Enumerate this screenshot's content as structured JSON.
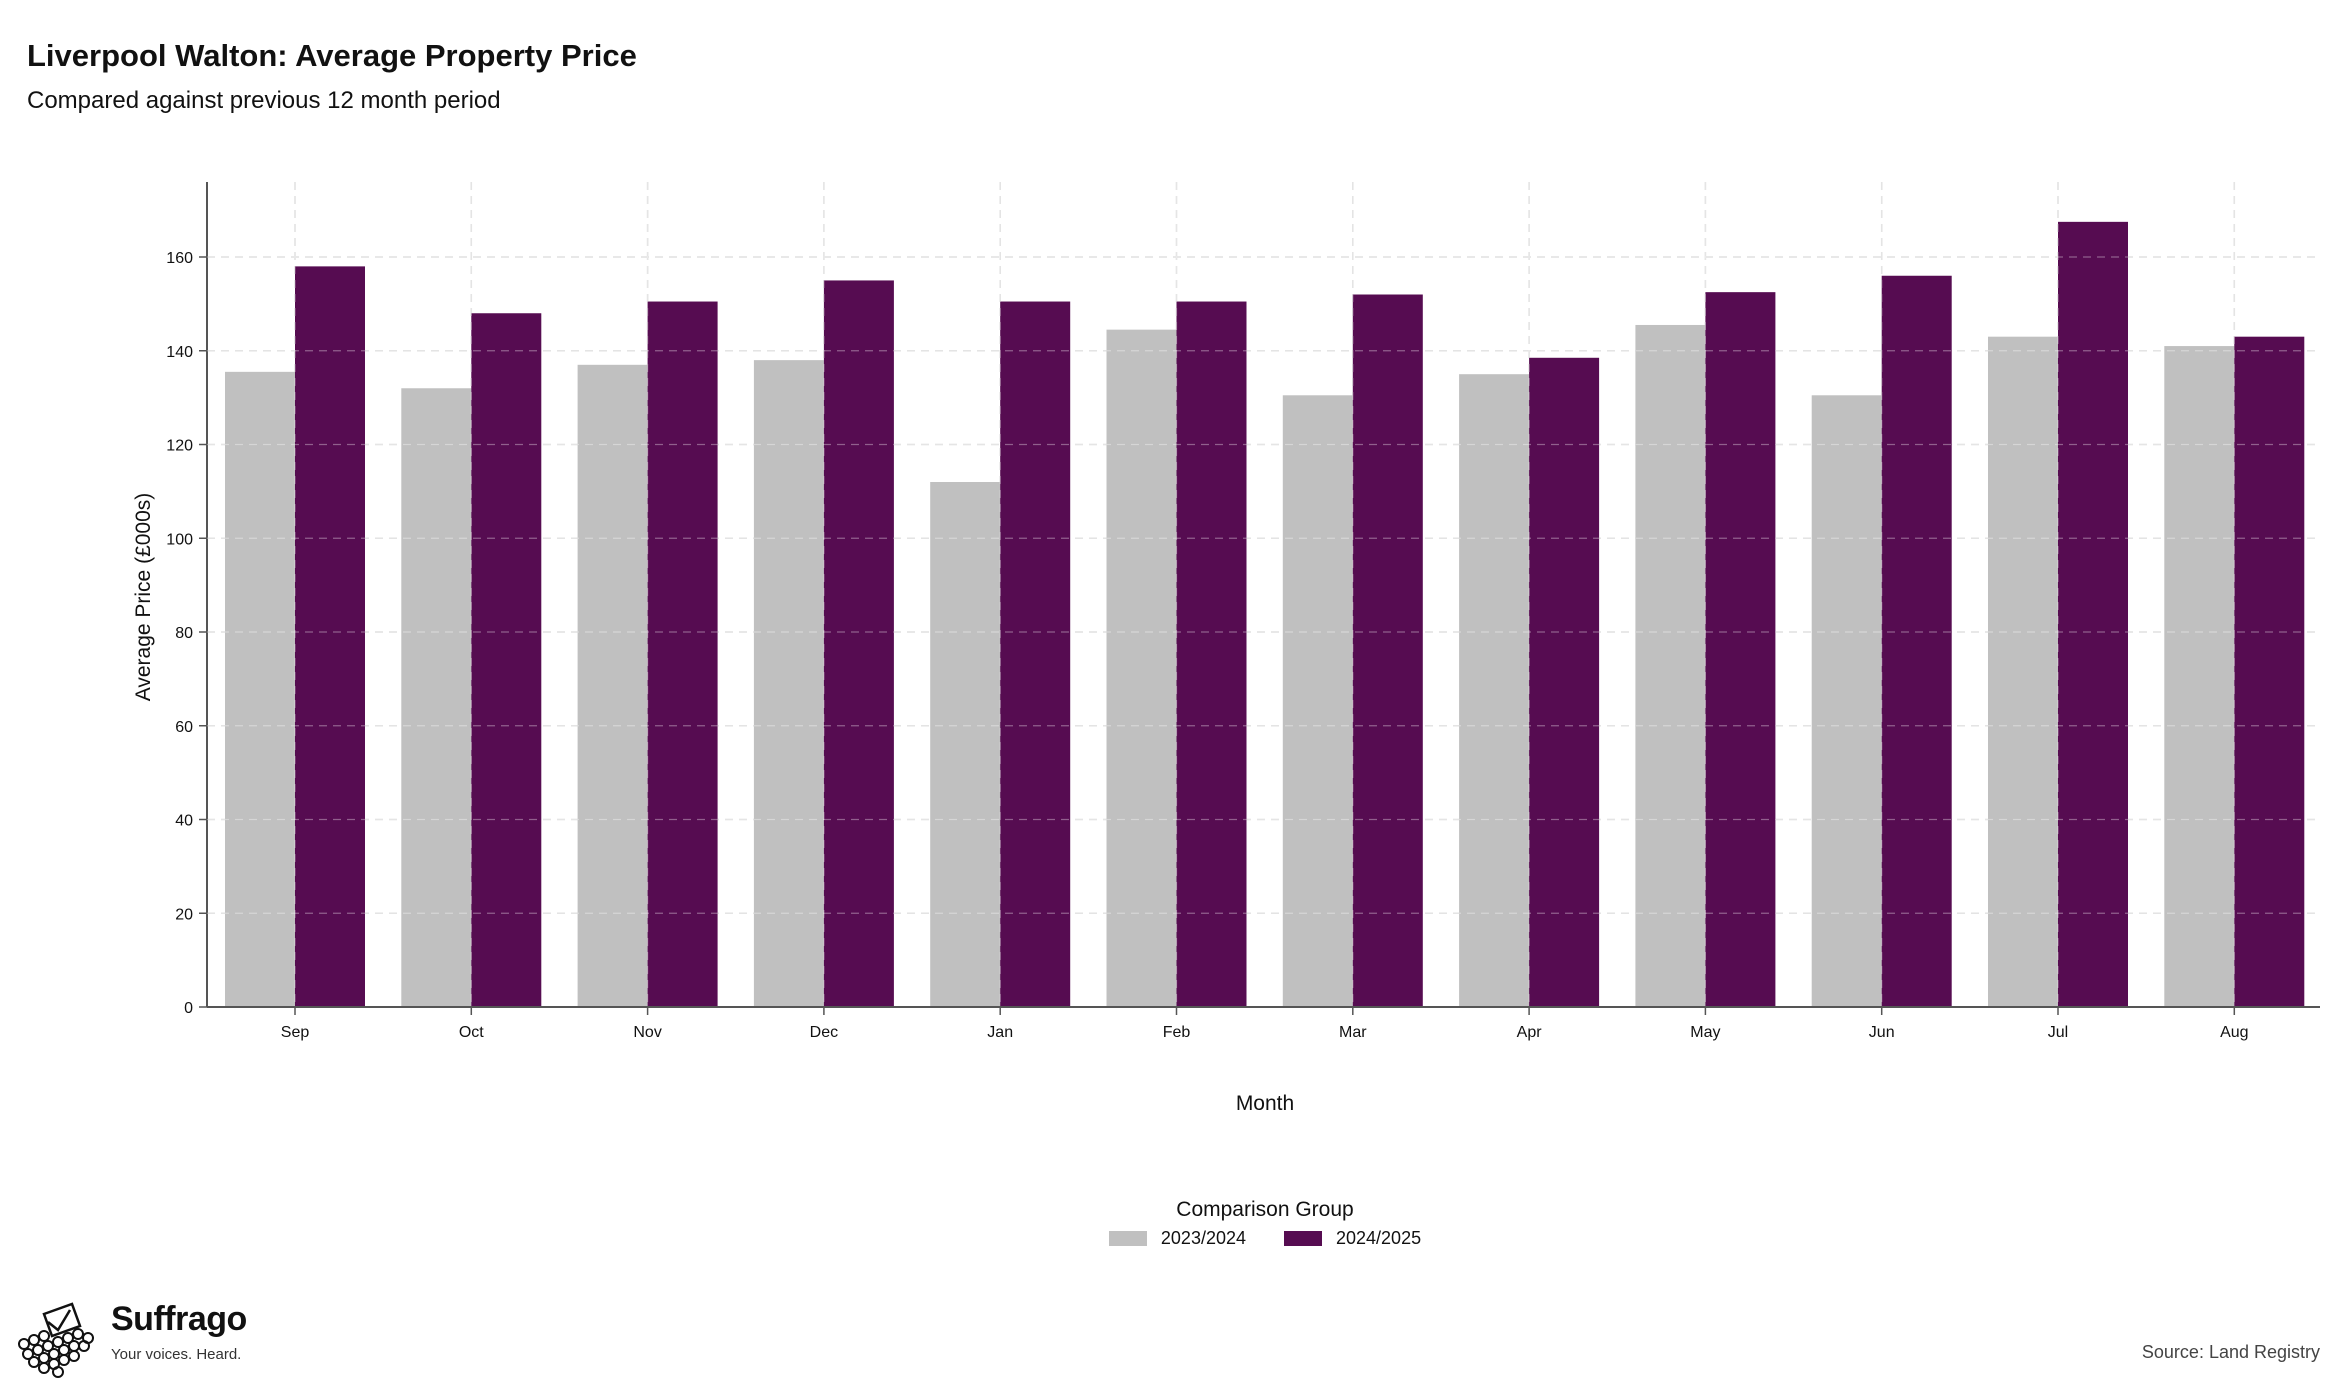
{
  "title": "Liverpool Walton: Average Property Price",
  "subtitle": "Compared against previous 12 month period",
  "legend": {
    "title": "Comparison Group",
    "items": [
      {
        "label": "2023/2024",
        "color": "#c0c0c0"
      },
      {
        "label": "2024/2025",
        "color": "#560c51"
      }
    ]
  },
  "brand": {
    "name": "Suffrago",
    "tagline": "Your voices. Heard."
  },
  "source": "Source: Land Registry",
  "chart_data": {
    "type": "bar",
    "title": "Liverpool Walton: Average Property Price",
    "subtitle": "Compared against previous 12 month period",
    "xlabel": "Month",
    "ylabel": "Average Price (£000s)",
    "ylim": [
      0,
      176
    ],
    "yticks": [
      0,
      20,
      40,
      60,
      80,
      100,
      120,
      140,
      160
    ],
    "grid": true,
    "legend_position": "bottom",
    "categories": [
      "Sep",
      "Oct",
      "Nov",
      "Dec",
      "Jan",
      "Feb",
      "Mar",
      "Apr",
      "May",
      "Jun",
      "Jul",
      "Aug"
    ],
    "series": [
      {
        "name": "2023/2024",
        "color": "#c0c0c0",
        "values": [
          135.5,
          132,
          137,
          138,
          112,
          144.5,
          130.5,
          135,
          145.5,
          130.5,
          143,
          141
        ]
      },
      {
        "name": "2024/2025",
        "color": "#560c51",
        "values": [
          158,
          148,
          150.5,
          155,
          150.5,
          150.5,
          152,
          138.5,
          152.5,
          156,
          167.5,
          143
        ]
      }
    ]
  }
}
